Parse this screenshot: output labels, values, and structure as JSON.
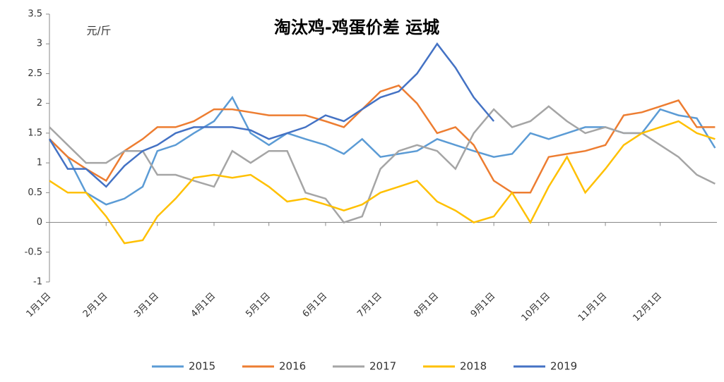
{
  "chart_data": {
    "type": "line",
    "title": "淘汰鸡-鸡蛋价差 运城",
    "y_label": "元/斤",
    "x": [
      "1月1日",
      "1月11日",
      "1月21日",
      "2月1日",
      "2月11日",
      "2月21日",
      "3月1日",
      "3月11日",
      "3月21日",
      "4月1日",
      "4月11日",
      "4月21日",
      "5月1日",
      "5月11日",
      "5月21日",
      "6月1日",
      "6月11日",
      "6月21日",
      "7月1日",
      "7月11日",
      "7月21日",
      "8月1日",
      "8月11日",
      "8月21日",
      "9月1日",
      "9月11日",
      "9月21日",
      "10月1日",
      "10月11日",
      "10月21日",
      "11月1日",
      "11月11日",
      "11月21日",
      "12月1日",
      "12月11日",
      "12月21日",
      "12月31日"
    ],
    "xticks": [
      "1月1日",
      "2月1日",
      "3月1日",
      "4月1日",
      "5月1日",
      "6月1日",
      "7月1日",
      "8月1日",
      "9月1日",
      "10月1日",
      "11月1日",
      "12月1日"
    ],
    "ylim": [
      -1,
      3.5
    ],
    "yticks": [
      -1,
      -0.5,
      0,
      0.5,
      1,
      1.5,
      2,
      2.5,
      3,
      3.5
    ],
    "legend": "bottom",
    "series": [
      {
        "name": "2015",
        "color": "#5b9bd5",
        "values": [
          1.4,
          1.1,
          0.5,
          0.3,
          0.4,
          0.6,
          1.2,
          1.3,
          1.5,
          1.7,
          2.1,
          1.5,
          1.3,
          1.5,
          1.4,
          1.3,
          1.15,
          1.4,
          1.1,
          1.15,
          1.2,
          1.4,
          1.3,
          1.2,
          1.1,
          1.15,
          1.5,
          1.4,
          1.5,
          1.6,
          1.6,
          1.5,
          1.5,
          1.9,
          1.8,
          1.75,
          1.25
        ]
      },
      {
        "name": "2016",
        "color": "#ed7d31",
        "values": [
          1.4,
          1.1,
          0.9,
          0.7,
          1.2,
          1.4,
          1.6,
          1.6,
          1.7,
          1.9,
          1.9,
          1.85,
          1.8,
          1.8,
          1.8,
          1.7,
          1.6,
          1.9,
          2.2,
          2.3,
          2.0,
          1.5,
          1.6,
          1.3,
          0.7,
          0.5,
          0.5,
          1.1,
          1.15,
          1.2,
          1.3,
          1.8,
          1.85,
          1.95,
          2.05,
          1.6,
          1.6
        ]
      },
      {
        "name": "2017",
        "color": "#a5a5a5",
        "values": [
          1.6,
          1.3,
          1.0,
          1.0,
          1.2,
          1.2,
          0.8,
          0.8,
          0.7,
          0.6,
          1.2,
          1.0,
          1.2,
          1.2,
          0.5,
          0.4,
          0.0,
          0.1,
          0.9,
          1.2,
          1.3,
          1.2,
          0.9,
          1.5,
          1.9,
          1.6,
          1.7,
          1.95,
          1.7,
          1.5,
          1.6,
          1.5,
          1.5,
          1.3,
          1.1,
          0.8,
          0.65
        ]
      },
      {
        "name": "2018",
        "color": "#ffc000",
        "values": [
          0.7,
          0.5,
          0.5,
          0.1,
          -0.35,
          -0.3,
          0.1,
          0.4,
          0.75,
          0.8,
          0.75,
          0.8,
          0.6,
          0.35,
          0.4,
          0.3,
          0.2,
          0.3,
          0.5,
          0.6,
          0.7,
          0.35,
          0.2,
          0.0,
          0.1,
          0.5,
          0.0,
          0.6,
          1.1,
          0.5,
          0.9,
          1.3,
          1.5,
          1.6,
          1.7,
          1.5,
          1.4
        ]
      },
      {
        "name": "2019",
        "color": "#4472c4",
        "values": [
          1.4,
          0.9,
          0.9,
          0.6,
          0.95,
          1.2,
          1.3,
          1.5,
          1.6,
          1.6,
          1.6,
          1.55,
          1.4,
          1.5,
          1.6,
          1.8,
          1.7,
          1.9,
          2.1,
          2.2,
          2.5,
          3.0,
          2.6,
          2.1,
          1.7,
          null,
          null,
          null,
          null,
          null,
          null,
          null,
          null,
          null,
          null,
          null,
          null
        ]
      }
    ]
  }
}
